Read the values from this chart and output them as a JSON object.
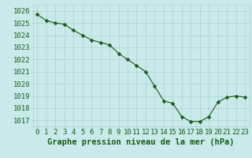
{
  "x": [
    0,
    1,
    2,
    3,
    4,
    5,
    6,
    7,
    8,
    9,
    10,
    11,
    12,
    13,
    14,
    15,
    16,
    17,
    18,
    19,
    20,
    21,
    22,
    23
  ],
  "y": [
    1025.7,
    1025.2,
    1025.0,
    1024.9,
    1024.4,
    1024.0,
    1023.6,
    1023.4,
    1023.2,
    1022.5,
    1022.0,
    1021.5,
    1021.0,
    1019.8,
    1018.6,
    1018.4,
    1017.3,
    1016.9,
    1016.9,
    1017.3,
    1018.5,
    1018.9,
    1019.0,
    1018.9
  ],
  "line_color": "#1a5c1a",
  "marker": "D",
  "marker_size": 2.5,
  "bg_color": "#c8eaea",
  "grid_color": "#b0d0d0",
  "tick_color": "#1a5c1a",
  "ylim": [
    1016.5,
    1026.5
  ],
  "yticks": [
    1017,
    1018,
    1019,
    1020,
    1021,
    1022,
    1023,
    1024,
    1025,
    1026
  ],
  "xlim": [
    -0.5,
    23.5
  ],
  "xticks": [
    0,
    1,
    2,
    3,
    4,
    5,
    6,
    7,
    8,
    9,
    10,
    11,
    12,
    13,
    14,
    15,
    16,
    17,
    18,
    19,
    20,
    21,
    22,
    23
  ],
  "xlabel": "Graphe pression niveau de la mer (hPa)",
  "xlabel_color": "#1a5c1a",
  "xlabel_fontsize": 7.5,
  "tick_fontsize": 6.5,
  "xlabel_bg": "#c8eaea"
}
